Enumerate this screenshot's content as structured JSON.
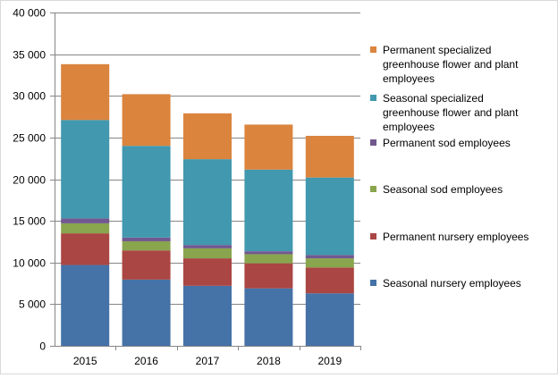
{
  "chart_data": {
    "type": "bar",
    "stacked": true,
    "categories": [
      "2015",
      "2016",
      "2017",
      "2018",
      "2019"
    ],
    "ylim": [
      0,
      40000
    ],
    "yticks": [
      {
        "value": 0,
        "label": "0"
      },
      {
        "value": 5000,
        "label": "5 000"
      },
      {
        "value": 10000,
        "label": "10 000"
      },
      {
        "value": 15000,
        "label": "15 000"
      },
      {
        "value": 20000,
        "label": "20 000"
      },
      {
        "value": 25000,
        "label": "25 000"
      },
      {
        "value": 30000,
        "label": "30 000"
      },
      {
        "value": 35000,
        "label": "35 000"
      },
      {
        "value": 40000,
        "label": "40 000"
      }
    ],
    "grid": true,
    "legend_position": "right",
    "series": [
      {
        "name": "Seasonal nursery employees",
        "color": "#4572a7",
        "values": [
          9700,
          7950,
          7200,
          6900,
          6300
        ]
      },
      {
        "name": "Permanent nursery employees",
        "color": "#aa4643",
        "values": [
          3800,
          3500,
          3300,
          3000,
          3100
        ]
      },
      {
        "name": "Seasonal sod employees",
        "color": "#89a54e",
        "values": [
          1200,
          1100,
          1200,
          1100,
          1100
        ]
      },
      {
        "name": "Permanent sod employees",
        "color": "#71588f",
        "values": [
          600,
          450,
          400,
          350,
          400
        ]
      },
      {
        "name": "Seasonal specialized greenhouse flower and plant employees",
        "color": "#4198af",
        "values": [
          11800,
          11000,
          10300,
          9800,
          9300
        ]
      },
      {
        "name": "Permanent specialized greenhouse flower and plant employees",
        "color": "#db843d",
        "values": [
          6700,
          6200,
          5500,
          5400,
          5000
        ]
      }
    ],
    "legend": [
      {
        "lines": [
          "Permanent specialized",
          "greenhouse flower and plant",
          "employees"
        ],
        "color": "#db843d"
      },
      {
        "lines": [
          "Seasonal specialized",
          "greenhouse flower and plant",
          "employees"
        ],
        "color": "#4198af"
      },
      {
        "lines": [
          "Permanent sod employees"
        ],
        "color": "#71588f"
      },
      {
        "lines": [
          "Seasonal sod employees"
        ],
        "color": "#89a54e"
      },
      {
        "lines": [
          "Permanent nursery employees"
        ],
        "color": "#aa4643"
      },
      {
        "lines": [
          "Seasonal nursery employees"
        ],
        "color": "#4572a7"
      }
    ]
  }
}
